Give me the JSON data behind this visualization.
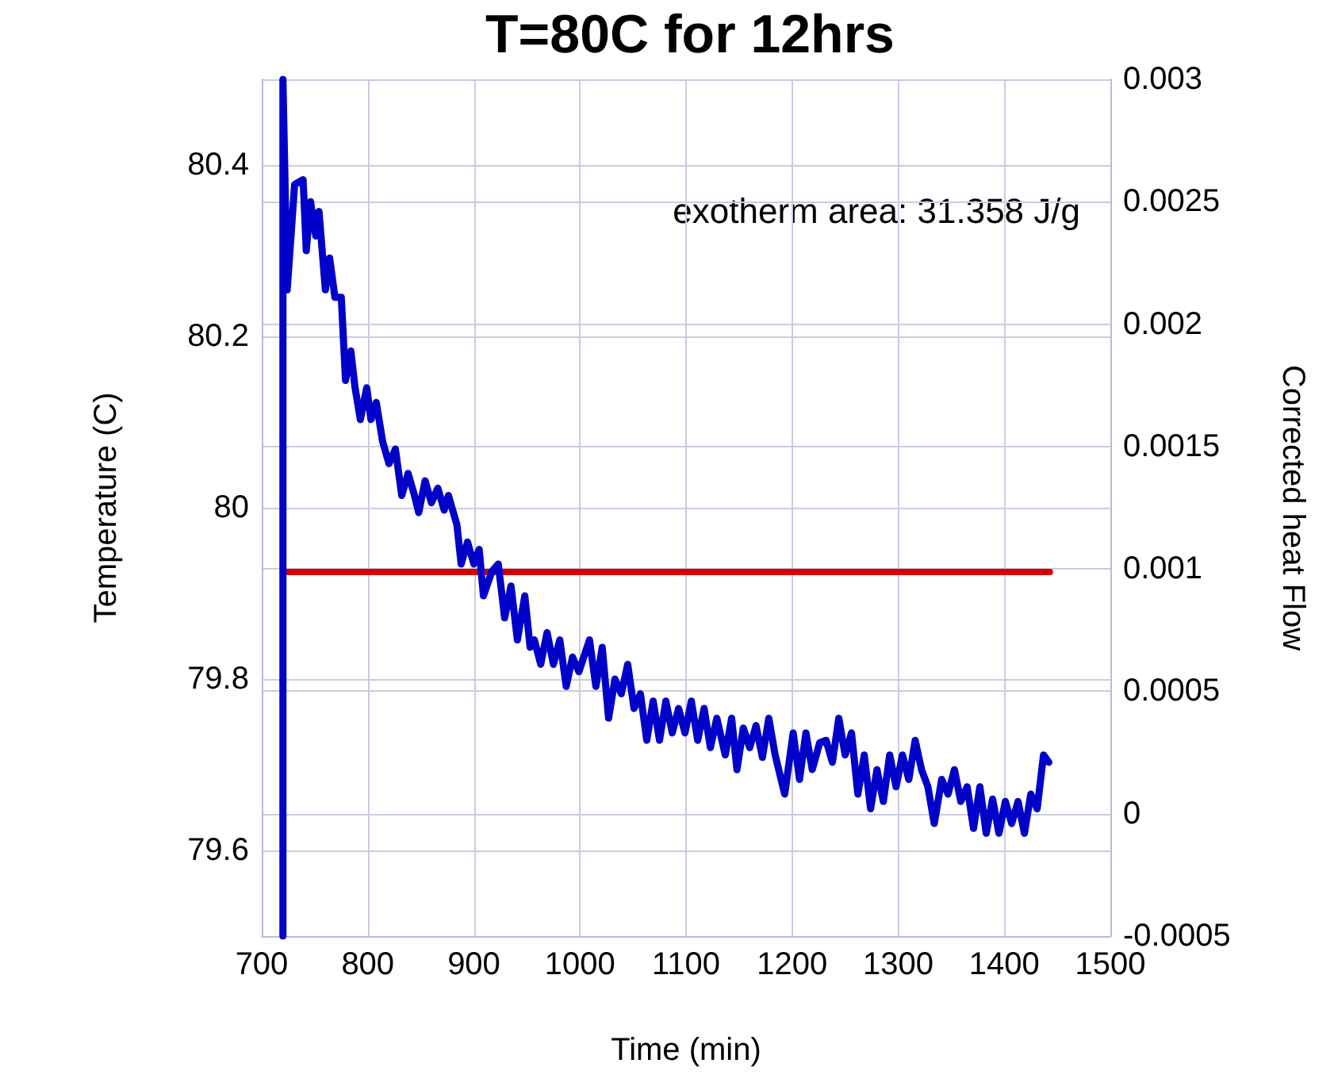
{
  "chart_data": {
    "type": "line",
    "title": "T=80C for 12hrs",
    "xlabel": "Time (min)",
    "ylabel": "Temperature (C)",
    "y2label": "Corrected heat Flow",
    "annotations": [
      "exotherm area: 31.358 J/g"
    ],
    "xlim": [
      700,
      1500
    ],
    "xticks": [
      700,
      800,
      900,
      1000,
      1100,
      1200,
      1300,
      1400,
      1500
    ],
    "ylim": [
      79.5,
      80.5
    ],
    "yticks": [
      79.6,
      79.8,
      80,
      80.2,
      80.4
    ],
    "y2lim": [
      -0.0005,
      0.003
    ],
    "y2ticks": [
      -0.0005,
      0,
      0.0005,
      0.001,
      0.0015,
      0.002,
      0.0025,
      0.003
    ],
    "grid": true,
    "marker": "none",
    "line_style": "solid",
    "series": [
      {
        "color": "#d40000",
        "x": [
          720,
          1080,
          1443
        ],
        "values": [
          79.925,
          79.925,
          79.925
        ]
      },
      {
        "color": "#0000c8",
        "axis": "y2",
        "x": [
          720,
          720,
          724,
          731,
          739,
          742,
          746,
          751,
          754,
          760,
          764,
          769,
          775,
          779,
          784,
          788,
          793,
          799,
          803,
          808,
          814,
          820,
          826,
          832,
          838,
          844,
          848,
          854,
          860,
          866,
          872,
          876,
          884,
          888,
          894,
          900,
          905,
          909,
          917,
          923,
          929,
          935,
          941,
          948,
          953,
          957,
          963,
          969,
          975,
          981,
          987,
          993,
          999,
          1009,
          1015,
          1021,
          1027,
          1033,
          1039,
          1045,
          1051,
          1057,
          1063,
          1069,
          1075,
          1081,
          1087,
          1093,
          1099,
          1105,
          1111,
          1117,
          1123,
          1129,
          1137,
          1143,
          1148,
          1154,
          1160,
          1166,
          1172,
          1178,
          1184,
          1193,
          1201,
          1207,
          1213,
          1219,
          1226,
          1232,
          1238,
          1244,
          1250,
          1256,
          1262,
          1268,
          1274,
          1280,
          1286,
          1292,
          1298,
          1304,
          1310,
          1316,
          1322,
          1328,
          1334,
          1341,
          1347,
          1353,
          1359,
          1365,
          1371,
          1377,
          1383,
          1389,
          1395,
          1401,
          1407,
          1413,
          1419,
          1425,
          1431,
          1437,
          1442
        ],
        "values": [
          -0.0005,
          0.003,
          0.00214,
          0.00257,
          0.00259,
          0.0023,
          0.0025,
          0.00236,
          0.00246,
          0.00214,
          0.00227,
          0.00211,
          0.00211,
          0.00177,
          0.00189,
          0.00174,
          0.00161,
          0.00174,
          0.00161,
          0.00168,
          0.00152,
          0.00143,
          0.00149,
          0.0013,
          0.00139,
          0.0013,
          0.00123,
          0.00136,
          0.00127,
          0.00133,
          0.00124,
          0.0013,
          0.00118,
          0.00102,
          0.00111,
          0.00102,
          0.00108,
          0.00089,
          0.00099,
          0.00102,
          0.0008,
          0.00093,
          0.00071,
          0.00089,
          0.00068,
          0.00071,
          0.00061,
          0.00074,
          0.00061,
          0.00071,
          0.00052,
          0.00064,
          0.00058,
          0.00071,
          0.00052,
          0.00068,
          0.00039,
          0.00055,
          0.00049,
          0.00061,
          0.00043,
          0.00049,
          0.0003,
          0.00046,
          0.0003,
          0.00046,
          0.00033,
          0.00043,
          0.00033,
          0.00046,
          0.0003,
          0.00043,
          0.00027,
          0.00039,
          0.00024,
          0.00039,
          0.00018,
          0.00035,
          0.00027,
          0.00036,
          0.00023,
          0.00039,
          0.00024,
          8e-05,
          0.00033,
          0.00014,
          0.00033,
          0.00018,
          0.00029,
          0.0003,
          0.00021,
          0.00039,
          0.00024,
          0.00033,
          8e-05,
          0.00024,
          2e-05,
          0.00018,
          5e-05,
          0.00024,
          0.00011,
          0.00024,
          0.00014,
          0.0003,
          0.00018,
          0.00011,
          -4e-05,
          0.00014,
          8e-05,
          0.00018,
          5e-05,
          0.00011,
          -6e-05,
          0.00011,
          -8e-05,
          6e-05,
          -8e-05,
          5e-05,
          -4e-05,
          5e-05,
          -8e-05,
          8e-05,
          2e-05,
          0.00024,
          0.00021
        ]
      }
    ]
  }
}
